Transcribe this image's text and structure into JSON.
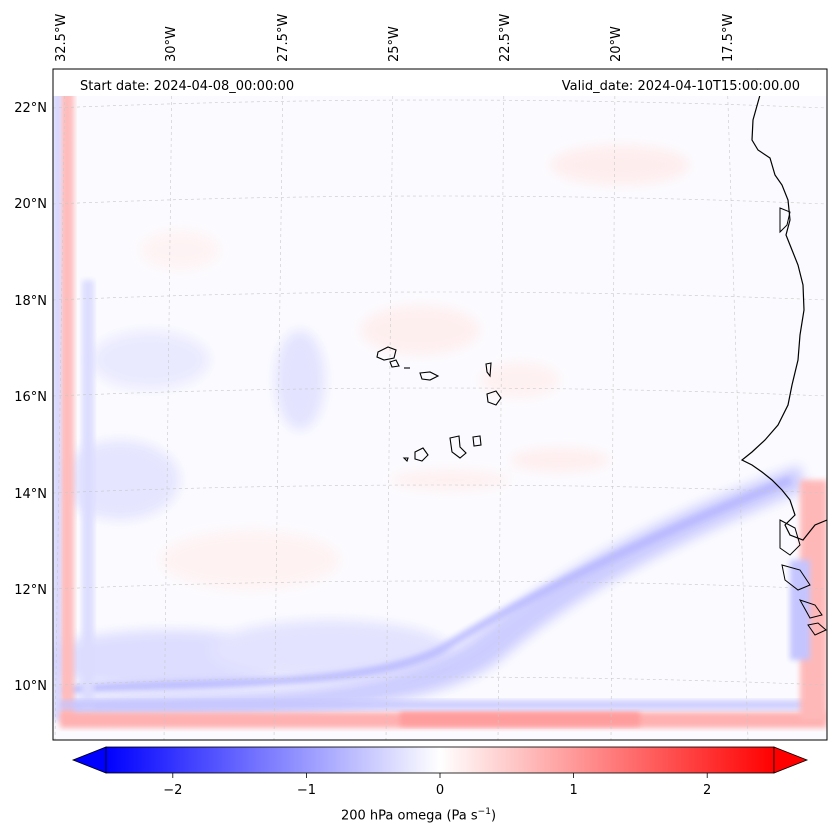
{
  "header": {
    "start_date": "Start date: 2024-04-08_00:00:00",
    "valid_date": "Valid_date: 2024-04-10T15:00:00.00"
  },
  "map": {
    "lon_labels": [
      "32.5°W",
      "30°W",
      "27.5°W",
      "25°W",
      "22.5°W",
      "20°W",
      "17.5°W"
    ],
    "lat_labels": [
      "22°N",
      "20°N",
      "18°N",
      "16°N",
      "14°N",
      "12°N",
      "10°N"
    ],
    "colors": {
      "positive": "#ff0000",
      "negative": "#0000ff",
      "coastline": "#000000",
      "gridline": "#c8c8c8"
    }
  },
  "colorbar": {
    "min": -2.6,
    "max": 2.6,
    "tick_labels": [
      "−2",
      "−1",
      "0",
      "1",
      "2"
    ],
    "tick_values": [
      -2,
      -1,
      0,
      1,
      2
    ],
    "label_text": "200 hPa omega (Pa s",
    "label_sup": "−1",
    "label_close": ")"
  }
}
